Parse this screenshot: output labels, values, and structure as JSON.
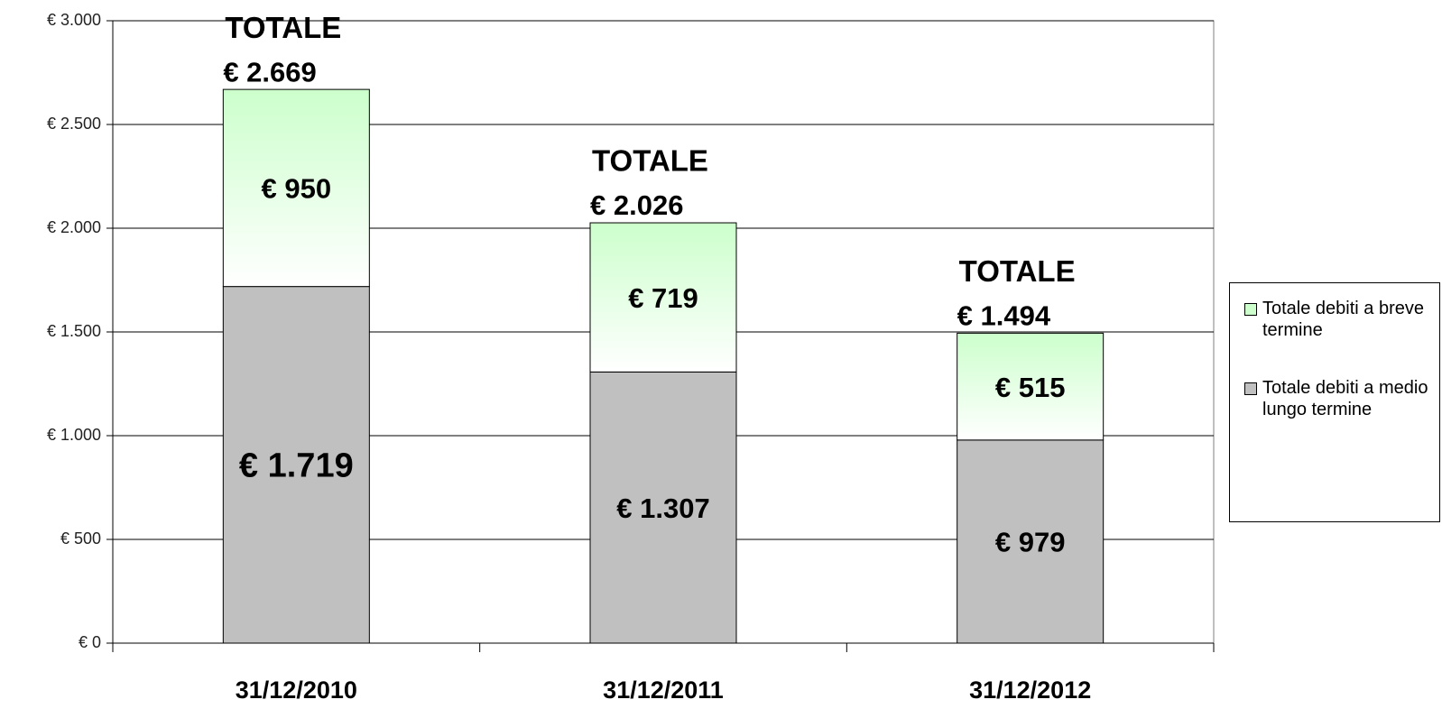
{
  "chart_data": {
    "type": "stacked_bar",
    "categories": [
      "31/12/2010",
      "31/12/2011",
      "31/12/2012"
    ],
    "series": [
      {
        "name": "Totale debiti a medio lungo termine",
        "color": "#c0c0c0",
        "values": [
          1719,
          1307,
          979
        ],
        "value_labels": [
          "€ 1.719",
          "€ 1.307",
          "€ 979"
        ]
      },
      {
        "name": "Totale debiti a breve termine",
        "color": "#ccffcc",
        "values": [
          950,
          719,
          515
        ],
        "value_labels": [
          "€ 950",
          "€ 719",
          "€ 515"
        ]
      }
    ],
    "totals": {
      "label": "TOTALE",
      "values": [
        2669,
        2026,
        1494
      ],
      "value_labels": [
        "€ 2.669",
        "€ 2.026",
        "€ 1.494"
      ]
    },
    "ylim": [
      0,
      3000
    ],
    "yticks": [
      {
        "value": 0,
        "label": "€ 0"
      },
      {
        "value": 500,
        "label": "€ 500"
      },
      {
        "value": 1000,
        "label": "€ 1.000"
      },
      {
        "value": 1500,
        "label": "€ 1.500"
      },
      {
        "value": 2000,
        "label": "€ 2.000"
      },
      {
        "value": 2500,
        "label": "€ 2.500"
      },
      {
        "value": 3000,
        "label": "€ 3.000"
      }
    ],
    "grid": true,
    "legend": "right"
  }
}
